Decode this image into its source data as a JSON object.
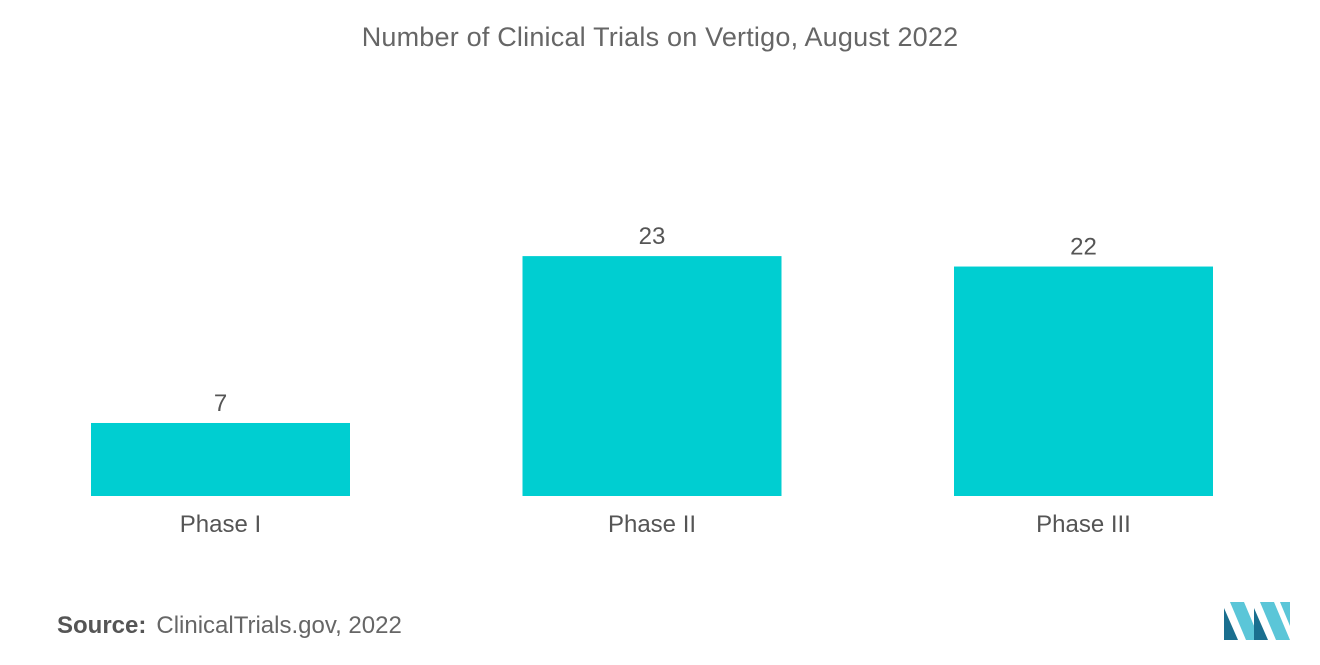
{
  "colors": {
    "bar": "#00ced1",
    "text": "#555555",
    "logo_dark": "#1a6f8f",
    "logo_light": "#5bc6d8"
  },
  "source": {
    "label": "Source:",
    "text": "ClinicalTrials.gov, 2022"
  },
  "logo": {
    "icon": "mordor-intelligence-logo-icon"
  },
  "chart_data": {
    "type": "bar",
    "title": "Number of Clinical Trials on Vertigo, August 2022",
    "categories": [
      "Phase I",
      "Phase II",
      "Phase III"
    ],
    "values": [
      7,
      23,
      22
    ],
    "data_labels": [
      "7",
      "23",
      "22"
    ],
    "xlabel": "",
    "ylabel": "",
    "ylim": [
      0,
      30
    ],
    "grid": false,
    "legend": "none",
    "y_axis_visible": false
  }
}
